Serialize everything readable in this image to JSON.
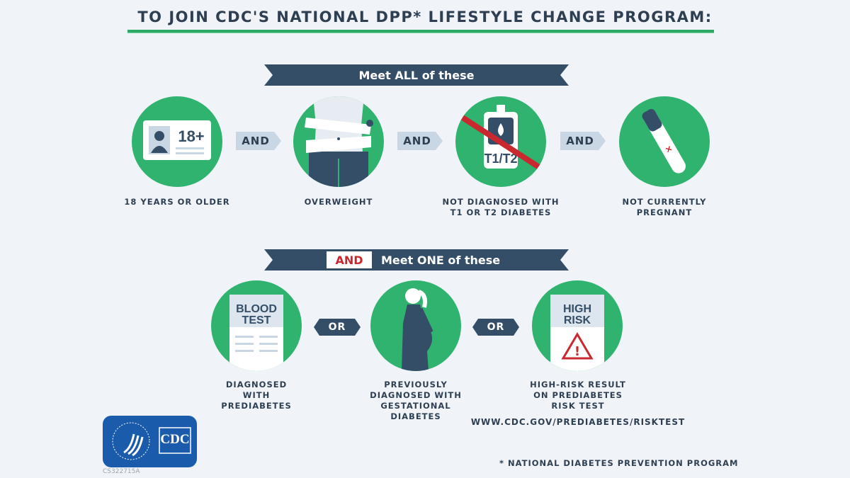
{
  "title": "TO JOIN CDC'S NATIONAL DPP* LIFESTYLE CHANGE PROGRAM:",
  "section_all": {
    "banner": "Meet ALL of these",
    "connector": "AND",
    "items": [
      {
        "icon": "id-card-18-plus-icon",
        "icon_text": "18+",
        "label": "18 YEARS OR OLDER"
      },
      {
        "icon": "measuring-tape-waist-icon",
        "label": "OVERWEIGHT"
      },
      {
        "icon": "glucose-meter-crossed-icon",
        "icon_text": "T1/T2",
        "label": "NOT DIAGNOSED WITH T1 OR T2 DIABETES"
      },
      {
        "icon": "pregnancy-test-negative-icon",
        "label": "NOT CURRENTLY PREGNANT"
      }
    ]
  },
  "section_one": {
    "prefix": "AND",
    "banner": "Meet ONE of these",
    "connector": "OR",
    "items": [
      {
        "icon": "blood-test-document-icon",
        "icon_text": "BLOOD TEST",
        "label": "DIAGNOSED WITH PREDIABETES"
      },
      {
        "icon": "pregnant-woman-icon",
        "label": "PREVIOUSLY DIAGNOSED WITH GESTATIONAL DIABETES"
      },
      {
        "icon": "high-risk-document-icon",
        "icon_text": "HIGH RISK",
        "label": "HIGH-RISK RESULT ON PREDIABETES RISK TEST"
      }
    ],
    "url": "WWW.CDC.GOV/PREDIABETES/RISKTEST"
  },
  "logo": {
    "text": "CDC",
    "code": "CS322715A"
  },
  "footnote": "* NATIONAL DIABETES PREVENTION PROGRAM",
  "colors": {
    "green": "#2fb36f",
    "navy": "#354e68",
    "red": "#c8282e",
    "arrow_light": "#c9d6e3",
    "logo_blue": "#1b5bab"
  }
}
